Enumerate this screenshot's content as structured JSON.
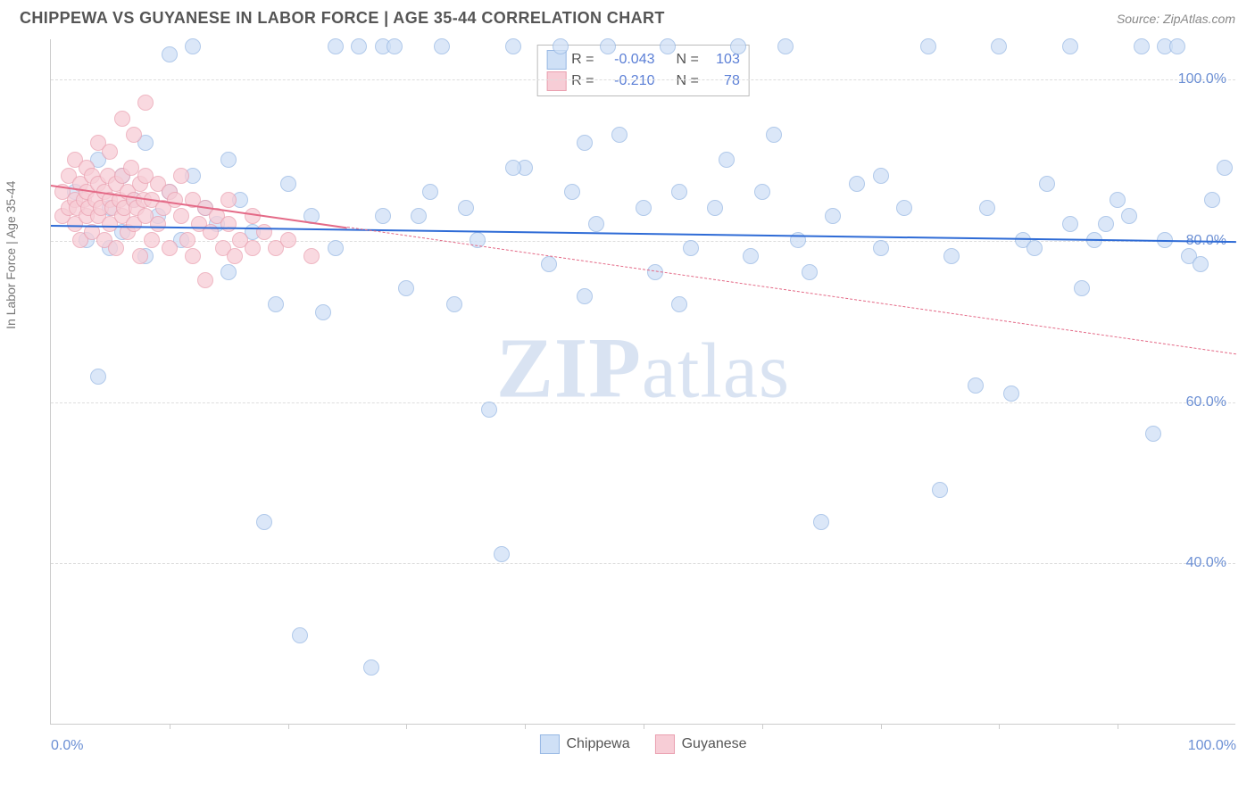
{
  "header": {
    "title": "CHIPPEWA VS GUYANESE IN LABOR FORCE | AGE 35-44 CORRELATION CHART",
    "source": "Source: ZipAtlas.com"
  },
  "chart": {
    "type": "scatter",
    "background_color": "#ffffff",
    "grid_color": "#dddddd",
    "axis_color": "#cccccc",
    "tick_label_color": "#6b8fd4",
    "tick_fontsize": 16,
    "ylabel": "In Labor Force | Age 35-44",
    "ylabel_fontsize": 14,
    "ylabel_color": "#777777",
    "xlim": [
      0,
      100
    ],
    "ylim": [
      20,
      105
    ],
    "ytick_labels": [
      "40.0%",
      "60.0%",
      "80.0%",
      "100.0%"
    ],
    "ytick_values": [
      40,
      60,
      80,
      100
    ],
    "xtick_labels": [
      "0.0%",
      "100.0%"
    ],
    "xtick_values": [
      0,
      100
    ],
    "minor_xtick_values": [
      10,
      20,
      30,
      40,
      50,
      60,
      70,
      80,
      90
    ],
    "watermark": "ZIPatlas",
    "series": [
      {
        "name": "Chippewa",
        "point_color_fill": "#cfe0f6",
        "point_color_stroke": "#97b8e4",
        "point_radius": 9,
        "points": [
          [
            2,
            86
          ],
          [
            3,
            80
          ],
          [
            4,
            90
          ],
          [
            4,
            63
          ],
          [
            5,
            84
          ],
          [
            5,
            79
          ],
          [
            6,
            88
          ],
          [
            6,
            81
          ],
          [
            7,
            85
          ],
          [
            8,
            92
          ],
          [
            8,
            78
          ],
          [
            9,
            83
          ],
          [
            10,
            103
          ],
          [
            10,
            86
          ],
          [
            11,
            80
          ],
          [
            12,
            104
          ],
          [
            12,
            88
          ],
          [
            13,
            84
          ],
          [
            14,
            82
          ],
          [
            15,
            90
          ],
          [
            15,
            76
          ],
          [
            16,
            85
          ],
          [
            17,
            81
          ],
          [
            18,
            45
          ],
          [
            19,
            72
          ],
          [
            20,
            87
          ],
          [
            21,
            31
          ],
          [
            22,
            83
          ],
          [
            23,
            71
          ],
          [
            24,
            104
          ],
          [
            24,
            79
          ],
          [
            26,
            104
          ],
          [
            27,
            27
          ],
          [
            28,
            104
          ],
          [
            28,
            83
          ],
          [
            29,
            104
          ],
          [
            30,
            74
          ],
          [
            31,
            83
          ],
          [
            32,
            86
          ],
          [
            33,
            104
          ],
          [
            34,
            72
          ],
          [
            35,
            84
          ],
          [
            36,
            80
          ],
          [
            37,
            59
          ],
          [
            38,
            41
          ],
          [
            39,
            104
          ],
          [
            40,
            89
          ],
          [
            42,
            77
          ],
          [
            43,
            104
          ],
          [
            44,
            86
          ],
          [
            45,
            73
          ],
          [
            45,
            92
          ],
          [
            46,
            82
          ],
          [
            47,
            104
          ],
          [
            48,
            93
          ],
          [
            50,
            84
          ],
          [
            51,
            76
          ],
          [
            52,
            104
          ],
          [
            53,
            86
          ],
          [
            54,
            79
          ],
          [
            56,
            84
          ],
          [
            57,
            90
          ],
          [
            58,
            104
          ],
          [
            59,
            78
          ],
          [
            60,
            86
          ],
          [
            61,
            93
          ],
          [
            62,
            104
          ],
          [
            63,
            80
          ],
          [
            64,
            76
          ],
          [
            65,
            45
          ],
          [
            66,
            83
          ],
          [
            68,
            87
          ],
          [
            70,
            79
          ],
          [
            72,
            84
          ],
          [
            74,
            104
          ],
          [
            75,
            49
          ],
          [
            76,
            78
          ],
          [
            78,
            62
          ],
          [
            79,
            84
          ],
          [
            80,
            104
          ],
          [
            81,
            61
          ],
          [
            82,
            80
          ],
          [
            83,
            79
          ],
          [
            84,
            87
          ],
          [
            86,
            104
          ],
          [
            87,
            74
          ],
          [
            88,
            80
          ],
          [
            89,
            82
          ],
          [
            90,
            85
          ],
          [
            91,
            83
          ],
          [
            92,
            104
          ],
          [
            93,
            56
          ],
          [
            94,
            80
          ],
          [
            94,
            104
          ],
          [
            95,
            104
          ],
          [
            96,
            78
          ],
          [
            97,
            77
          ],
          [
            98,
            85
          ],
          [
            99,
            89
          ],
          [
            86,
            82
          ],
          [
            70,
            88
          ],
          [
            53,
            72
          ],
          [
            39,
            89
          ]
        ],
        "trend": {
          "x1": 0,
          "y1": 82,
          "x2": 100,
          "y2": 80,
          "color": "#2e6bd6",
          "style": "solid",
          "width": 2.5,
          "extent_x": 100
        }
      },
      {
        "name": "Guyanese",
        "point_color_fill": "#f7cdd6",
        "point_color_stroke": "#eaa0b0",
        "point_radius": 9,
        "points": [
          [
            1,
            83
          ],
          [
            1,
            86
          ],
          [
            1.5,
            84
          ],
          [
            1.5,
            88
          ],
          [
            2,
            85
          ],
          [
            2,
            82
          ],
          [
            2,
            90
          ],
          [
            2.2,
            84
          ],
          [
            2.5,
            87
          ],
          [
            2.5,
            80
          ],
          [
            2.8,
            85
          ],
          [
            3,
            86
          ],
          [
            3,
            83
          ],
          [
            3,
            89
          ],
          [
            3.2,
            84
          ],
          [
            3.5,
            88
          ],
          [
            3.5,
            81
          ],
          [
            3.8,
            85
          ],
          [
            4,
            87
          ],
          [
            4,
            83
          ],
          [
            4,
            92
          ],
          [
            4.2,
            84
          ],
          [
            4.5,
            86
          ],
          [
            4.5,
            80
          ],
          [
            4.8,
            88
          ],
          [
            5,
            85
          ],
          [
            5,
            82
          ],
          [
            5,
            91
          ],
          [
            5.2,
            84
          ],
          [
            5.5,
            87
          ],
          [
            5.5,
            79
          ],
          [
            5.8,
            85
          ],
          [
            6,
            88
          ],
          [
            6,
            83
          ],
          [
            6,
            95
          ],
          [
            6.2,
            84
          ],
          [
            6.5,
            86
          ],
          [
            6.5,
            81
          ],
          [
            6.8,
            89
          ],
          [
            7,
            85
          ],
          [
            7,
            82
          ],
          [
            7,
            93
          ],
          [
            7.2,
            84
          ],
          [
            7.5,
            87
          ],
          [
            7.5,
            78
          ],
          [
            7.8,
            85
          ],
          [
            8,
            88
          ],
          [
            8,
            83
          ],
          [
            8,
            97
          ],
          [
            8.5,
            85
          ],
          [
            8.5,
            80
          ],
          [
            9,
            87
          ],
          [
            9,
            82
          ],
          [
            9.5,
            84
          ],
          [
            10,
            86
          ],
          [
            10,
            79
          ],
          [
            10.5,
            85
          ],
          [
            11,
            83
          ],
          [
            11,
            88
          ],
          [
            11.5,
            80
          ],
          [
            12,
            85
          ],
          [
            12,
            78
          ],
          [
            12.5,
            82
          ],
          [
            13,
            84
          ],
          [
            13,
            75
          ],
          [
            13.5,
            81
          ],
          [
            14,
            83
          ],
          [
            14.5,
            79
          ],
          [
            15,
            82
          ],
          [
            15,
            85
          ],
          [
            15.5,
            78
          ],
          [
            16,
            80
          ],
          [
            17,
            79
          ],
          [
            17,
            83
          ],
          [
            18,
            81
          ],
          [
            19,
            79
          ],
          [
            20,
            80
          ],
          [
            22,
            78
          ]
        ],
        "trend": {
          "x1": 0,
          "y1": 87,
          "x2": 100,
          "y2": 66,
          "color": "#e46a87",
          "style": "solid",
          "width": 2.5,
          "extent_x": 25,
          "dash_after": true
        }
      }
    ],
    "stats_legend": {
      "rows": [
        {
          "swatch_fill": "#cfe0f6",
          "swatch_stroke": "#97b8e4",
          "r": "-0.043",
          "n": "103"
        },
        {
          "swatch_fill": "#f7cdd6",
          "swatch_stroke": "#eaa0b0",
          "r": "-0.210",
          "n": "78"
        }
      ],
      "label_r": "R =",
      "label_n": "N ="
    },
    "bottom_legend": [
      {
        "swatch_fill": "#cfe0f6",
        "swatch_stroke": "#97b8e4",
        "label": "Chippewa"
      },
      {
        "swatch_fill": "#f7cdd6",
        "swatch_stroke": "#eaa0b0",
        "label": "Guyanese"
      }
    ]
  }
}
